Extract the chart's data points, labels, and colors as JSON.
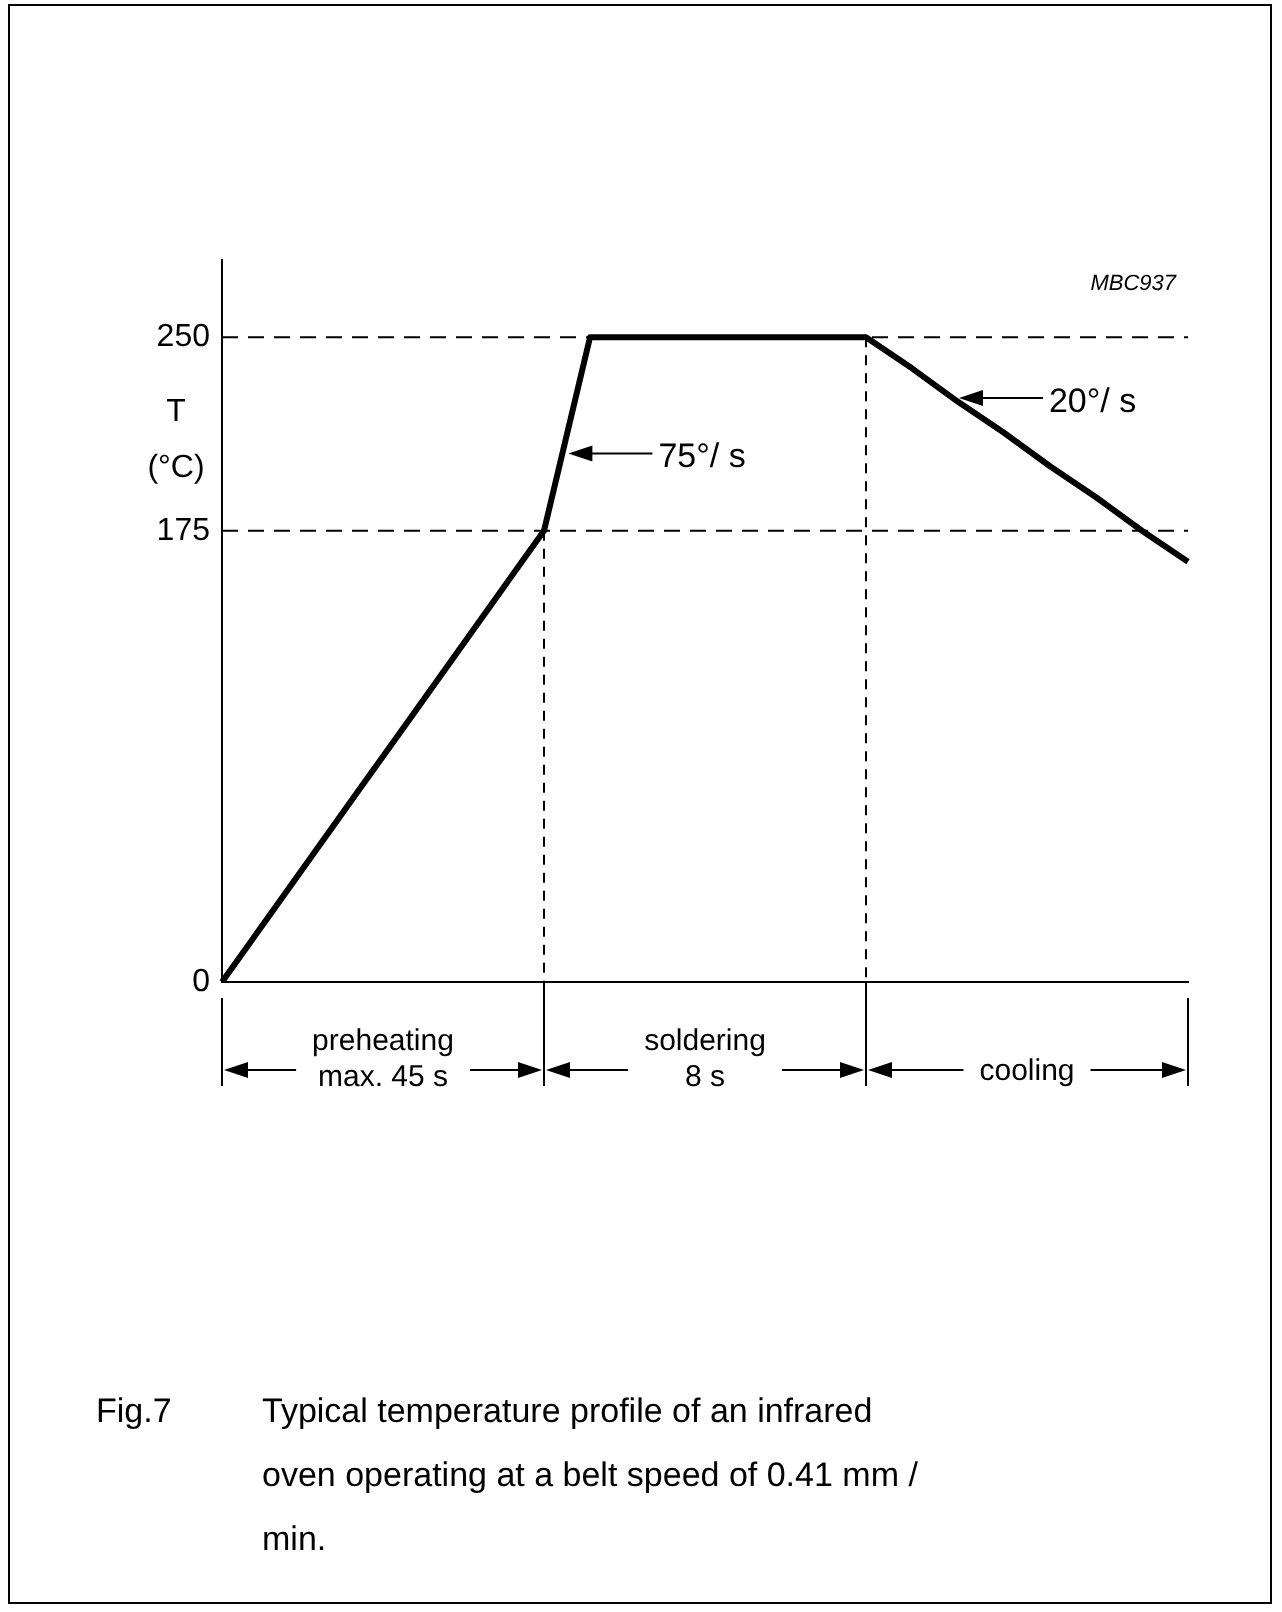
{
  "chart_data": {
    "type": "line",
    "categories": [
      null,
      null,
      null,
      null,
      null,
      null,
      null,
      null,
      null,
      null,
      null,
      null,
      null,
      null,
      null,
      null,
      null,
      null,
      null,
      null,
      null,
      null
    ],
    "series": [
      {
        "color": "#000000",
        "values": [
          0,
          25,
          50,
          75,
          100,
          125,
          150,
          175,
          250,
          250,
          250,
          250,
          250,
          250,
          250,
          238,
          225,
          213,
          200,
          188,
          175,
          163
        ]
      }
    ],
    "ylabel": "T (°C)",
    "ylim": [
      0,
      280
    ],
    "yticks": [
      0,
      175,
      250
    ],
    "tick_labels": "y",
    "grid": false,
    "legend": false,
    "marker": "none",
    "line_style": "solid",
    "ref_lines": [
      {
        "axis": "y",
        "value": 250,
        "line_style": "dashed"
      },
      {
        "axis": "y",
        "value": 175,
        "line_style": "dashed"
      }
    ],
    "annotations": [
      "MBC937",
      "75°/ s",
      "20°/ s",
      "preheating\nmax. 45 s",
      "soldering\n8 s",
      "cooling",
      "Fig.7",
      "Typical temperature profile of an infrared oven operating at a belt speed of 0.41 mm / min."
    ]
  }
}
